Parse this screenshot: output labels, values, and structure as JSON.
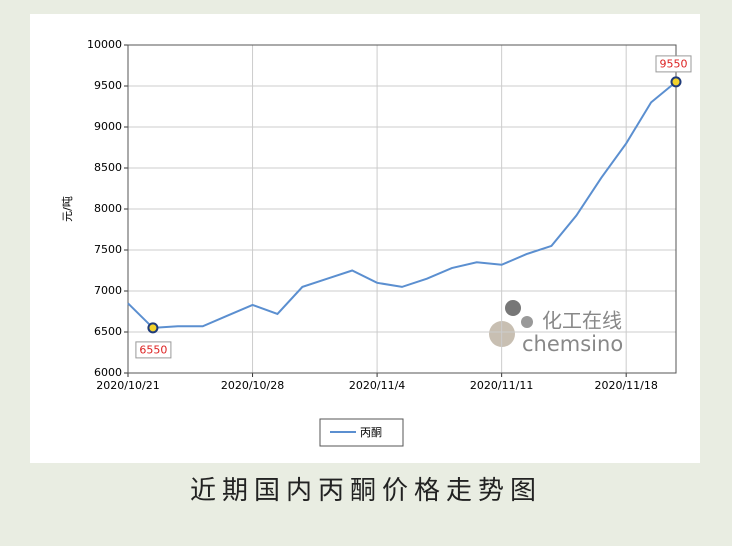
{
  "chart_data": {
    "type": "line",
    "caption": "近期国内丙酮价格走势图",
    "ylabel": "元/吨",
    "watermark": [
      "化工在线",
      "chemsino"
    ],
    "categories": [
      "2020/10/21",
      null,
      null,
      null,
      null,
      "2020/10/28",
      null,
      null,
      null,
      null,
      "2020/11/4",
      null,
      null,
      null,
      null,
      "2020/11/11",
      null,
      null,
      null,
      null,
      "2020/11/18",
      null,
      null
    ],
    "series": [
      {
        "name": "丙酮",
        "color": "#5b8fd0",
        "values": [
          6850,
          6550,
          6570,
          6570,
          6700,
          6830,
          6720,
          7050,
          7150,
          7250,
          7100,
          7050,
          7150,
          7280,
          7350,
          7320,
          7450,
          7550,
          7920,
          8380,
          8800,
          9300,
          9550
        ]
      }
    ],
    "data_labels": "min-max",
    "ylim": [
      6000,
      10000
    ],
    "yticks": [
      6000,
      6500,
      7000,
      7500,
      8000,
      8500,
      9000,
      9500,
      10000
    ],
    "grid": true
  }
}
